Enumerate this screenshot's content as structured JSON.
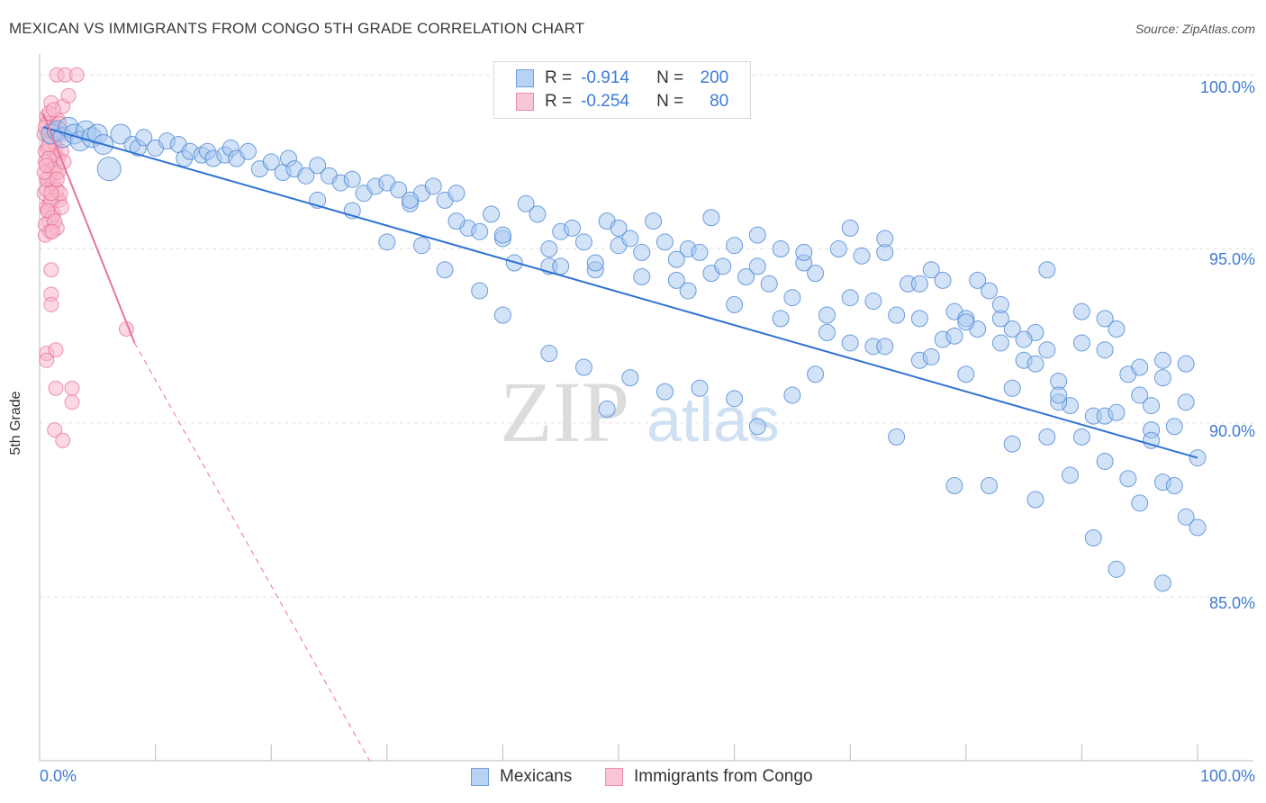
{
  "header": {
    "title": "MEXICAN VS IMMIGRANTS FROM CONGO 5TH GRADE CORRELATION CHART",
    "source": "Source: ZipAtlas.com"
  },
  "watermark": {
    "zip": "ZIP",
    "atlas": "atlas"
  },
  "legend": {
    "rows": [
      {
        "r_label": "R =",
        "r_value": "-0.914",
        "n_label": "N =",
        "n_value": "200"
      },
      {
        "r_label": "R =",
        "r_value": "-0.254",
        "n_label": "N =",
        "n_value": "80"
      }
    ]
  },
  "colors": {
    "blue_fill": "#a8c8f0",
    "blue_stroke": "#4a86d6",
    "blue_line": "#2f72d2",
    "pink_fill": "#f7b8cb",
    "pink_stroke": "#e8729a",
    "pink_line": "#e8739b",
    "tick_text": "#3d7bd4",
    "grid": "#e2e2e2"
  },
  "chart_data": {
    "type": "scatter",
    "title": "MEXICAN VS IMMIGRANTS FROM CONGO 5TH GRADE CORRELATION CHART",
    "xlabel": "",
    "ylabel": "5th Grade",
    "xlim": [
      0,
      100
    ],
    "ylim": [
      80.3,
      100.6
    ],
    "x_tick_labels": [
      "0.0%",
      "100.0%"
    ],
    "y_ticks": [
      85,
      90,
      95,
      100
    ],
    "y_tick_labels": [
      "85.0%",
      "90.0%",
      "95.0%",
      "100.0%"
    ],
    "grid": "horizontal dashed",
    "legend_placement": "bottom-center",
    "series": [
      {
        "name": "Mexicans",
        "R": -0.914,
        "N": 200,
        "trend": {
          "x": [
            0.3,
            100
          ],
          "y": [
            98.5,
            89.0
          ]
        },
        "points": [
          [
            1,
            98.3
          ],
          [
            1.5,
            98.4
          ],
          [
            2,
            98.2
          ],
          [
            2.5,
            98.5
          ],
          [
            3,
            98.3
          ],
          [
            3.5,
            98.1
          ],
          [
            4,
            98.4
          ],
          [
            4.5,
            98.2
          ],
          [
            5,
            98.3
          ],
          [
            5.5,
            98.0
          ],
          [
            6,
            97.3
          ],
          [
            7,
            98.3
          ],
          [
            8,
            98.0
          ],
          [
            8.5,
            97.9
          ],
          [
            9,
            98.2
          ],
          [
            10,
            97.9
          ],
          [
            11,
            98.1
          ],
          [
            12,
            98.0
          ],
          [
            12.5,
            97.6
          ],
          [
            13,
            97.8
          ],
          [
            14,
            97.7
          ],
          [
            14.5,
            97.8
          ],
          [
            15,
            97.6
          ],
          [
            16,
            97.7
          ],
          [
            16.5,
            97.9
          ],
          [
            17,
            97.6
          ],
          [
            18,
            97.8
          ],
          [
            19,
            97.3
          ],
          [
            20,
            97.5
          ],
          [
            21,
            97.2
          ],
          [
            21.5,
            97.6
          ],
          [
            22,
            97.3
          ],
          [
            23,
            97.1
          ],
          [
            24,
            97.4
          ],
          [
            25,
            97.1
          ],
          [
            26,
            96.9
          ],
          [
            27,
            97.0
          ],
          [
            28,
            96.6
          ],
          [
            29,
            96.8
          ],
          [
            30,
            96.9
          ],
          [
            31,
            96.7
          ],
          [
            32,
            96.3
          ],
          [
            33,
            96.6
          ],
          [
            34,
            96.8
          ],
          [
            35,
            96.4
          ],
          [
            36,
            96.6
          ],
          [
            37,
            95.6
          ],
          [
            38,
            95.5
          ],
          [
            39,
            96.0
          ],
          [
            40,
            95.3
          ],
          [
            41,
            94.6
          ],
          [
            42,
            96.3
          ],
          [
            43,
            96.0
          ],
          [
            44,
            94.5
          ],
          [
            45,
            95.5
          ],
          [
            46,
            95.6
          ],
          [
            47,
            95.2
          ],
          [
            48,
            94.4
          ],
          [
            49,
            95.8
          ],
          [
            50,
            95.1
          ],
          [
            51,
            95.3
          ],
          [
            52,
            94.9
          ],
          [
            53,
            95.8
          ],
          [
            54,
            95.2
          ],
          [
            55,
            94.1
          ],
          [
            56,
            95.0
          ],
          [
            57,
            94.9
          ],
          [
            58,
            94.3
          ],
          [
            59,
            94.5
          ],
          [
            60,
            95.1
          ],
          [
            61,
            94.2
          ],
          [
            62,
            95.4
          ],
          [
            63,
            94.0
          ],
          [
            64,
            95.0
          ],
          [
            65,
            93.6
          ],
          [
            66,
            94.6
          ],
          [
            67,
            94.3
          ],
          [
            68,
            93.1
          ],
          [
            69,
            95.0
          ],
          [
            70,
            93.6
          ],
          [
            71,
            94.8
          ],
          [
            72,
            93.5
          ],
          [
            73,
            94.9
          ],
          [
            74,
            93.1
          ],
          [
            75,
            94.0
          ],
          [
            76,
            93.0
          ],
          [
            77,
            94.4
          ],
          [
            78,
            92.4
          ],
          [
            79,
            93.2
          ],
          [
            80,
            93.0
          ],
          [
            81,
            92.7
          ],
          [
            82,
            93.8
          ],
          [
            83,
            92.3
          ],
          [
            84,
            92.7
          ],
          [
            85,
            91.8
          ],
          [
            86,
            92.6
          ],
          [
            87,
            92.1
          ],
          [
            88,
            91.2
          ],
          [
            89,
            90.5
          ],
          [
            90,
            92.3
          ],
          [
            91,
            90.2
          ],
          [
            92,
            93.0
          ],
          [
            93,
            92.7
          ],
          [
            94,
            91.4
          ],
          [
            95,
            90.8
          ],
          [
            96,
            90.5
          ],
          [
            97,
            91.3
          ],
          [
            98,
            89.9
          ],
          [
            99,
            90.6
          ],
          [
            100,
            89.0
          ],
          [
            32,
            96.4
          ],
          [
            36,
            95.8
          ],
          [
            40,
            95.4
          ],
          [
            44,
            95.0
          ],
          [
            48,
            94.6
          ],
          [
            52,
            94.2
          ],
          [
            56,
            93.8
          ],
          [
            60,
            93.4
          ],
          [
            64,
            93.0
          ],
          [
            68,
            92.6
          ],
          [
            72,
            92.2
          ],
          [
            76,
            91.8
          ],
          [
            80,
            91.4
          ],
          [
            84,
            91.0
          ],
          [
            88,
            90.6
          ],
          [
            92,
            90.2
          ],
          [
            96,
            89.8
          ],
          [
            45,
            94.5
          ],
          [
            50,
            95.6
          ],
          [
            55,
            94.7
          ],
          [
            58,
            95.9
          ],
          [
            62,
            94.5
          ],
          [
            66,
            94.9
          ],
          [
            70,
            95.6
          ],
          [
            73,
            95.3
          ],
          [
            76,
            94.0
          ],
          [
            79,
            92.5
          ],
          [
            81,
            94.1
          ],
          [
            83,
            93.0
          ],
          [
            86,
            91.7
          ],
          [
            88,
            90.8
          ],
          [
            90,
            89.6
          ],
          [
            92,
            88.9
          ],
          [
            94,
            88.4
          ],
          [
            95,
            87.7
          ],
          [
            97,
            88.3
          ],
          [
            98,
            88.2
          ],
          [
            99,
            87.3
          ],
          [
            100,
            87.0
          ],
          [
            91,
            86.7
          ],
          [
            93,
            85.8
          ],
          [
            97,
            85.4
          ],
          [
            86,
            87.8
          ],
          [
            89,
            88.5
          ],
          [
            87,
            89.6
          ],
          [
            93,
            90.3
          ],
          [
            95,
            91.6
          ],
          [
            97,
            91.8
          ],
          [
            99,
            91.7
          ],
          [
            96,
            89.5
          ],
          [
            84,
            89.4
          ],
          [
            82,
            88.2
          ],
          [
            79,
            88.2
          ],
          [
            74,
            89.6
          ],
          [
            77,
            91.9
          ],
          [
            80,
            92.9
          ],
          [
            85,
            92.4
          ],
          [
            87,
            94.4
          ],
          [
            90,
            93.2
          ],
          [
            92,
            92.1
          ],
          [
            83,
            93.4
          ],
          [
            78,
            94.1
          ],
          [
            73,
            92.2
          ],
          [
            70,
            92.3
          ],
          [
            67,
            91.4
          ],
          [
            65,
            90.8
          ],
          [
            62,
            89.9
          ],
          [
            60,
            90.7
          ],
          [
            57,
            91.0
          ],
          [
            54,
            90.9
          ],
          [
            51,
            91.3
          ],
          [
            49,
            90.4
          ],
          [
            47,
            91.6
          ],
          [
            44,
            92.0
          ],
          [
            40,
            93.1
          ],
          [
            38,
            93.8
          ],
          [
            35,
            94.4
          ],
          [
            33,
            95.1
          ],
          [
            30,
            95.2
          ],
          [
            27,
            96.1
          ],
          [
            24,
            96.4
          ]
        ]
      },
      {
        "name": "Immigrants from Congo",
        "R": -0.254,
        "N": 80,
        "trend_solid": {
          "x": [
            0.3,
            8.2
          ],
          "y": [
            98.9,
            92.3
          ]
        },
        "trend_dashed": {
          "x": [
            8.2,
            28.5
          ],
          "y": [
            92.3,
            80.3
          ]
        },
        "points": [
          [
            1.5,
            100.0
          ],
          [
            2.2,
            100.0
          ],
          [
            3.2,
            100.0
          ],
          [
            1.0,
            99.2
          ],
          [
            2.0,
            99.1
          ],
          [
            2.5,
            99.4
          ],
          [
            0.6,
            98.8
          ],
          [
            1.2,
            98.6
          ],
          [
            1.8,
            98.4
          ],
          [
            0.8,
            98.2
          ],
          [
            1.3,
            98.0
          ],
          [
            0.5,
            97.8
          ],
          [
            1.6,
            97.6
          ],
          [
            0.9,
            97.4
          ],
          [
            1.4,
            97.2
          ],
          [
            0.7,
            97.0
          ],
          [
            1.1,
            96.8
          ],
          [
            0.4,
            96.6
          ],
          [
            1.7,
            96.4
          ],
          [
            0.6,
            96.2
          ],
          [
            1.2,
            96.0
          ],
          [
            0.8,
            95.8
          ],
          [
            1.5,
            95.6
          ],
          [
            0.5,
            95.4
          ],
          [
            0.6,
            98.6
          ],
          [
            0.9,
            98.4
          ],
          [
            0.4,
            98.3
          ],
          [
            1.0,
            98.1
          ],
          [
            0.7,
            97.9
          ],
          [
            1.3,
            97.7
          ],
          [
            0.5,
            97.5
          ],
          [
            1.0,
            97.3
          ],
          [
            0.8,
            97.1
          ],
          [
            1.2,
            96.9
          ],
          [
            0.6,
            96.7
          ],
          [
            1.4,
            96.5
          ],
          [
            0.9,
            96.3
          ],
          [
            0.7,
            96.1
          ],
          [
            1.1,
            95.9
          ],
          [
            0.5,
            95.7
          ],
          [
            1.6,
            98.7
          ],
          [
            0.5,
            98.5
          ],
          [
            1.0,
            98.2
          ],
          [
            1.4,
            97.9
          ],
          [
            0.8,
            97.6
          ],
          [
            1.2,
            97.3
          ],
          [
            0.6,
            97.0
          ],
          [
            1.5,
            96.7
          ],
          [
            1.0,
            96.4
          ],
          [
            0.7,
            96.1
          ],
          [
            1.3,
            95.8
          ],
          [
            1.9,
            97.8
          ],
          [
            2.0,
            98.3
          ],
          [
            1.6,
            97.2
          ],
          [
            1.8,
            96.6
          ],
          [
            0.9,
            95.5
          ],
          [
            1.0,
            94.4
          ],
          [
            1.0,
            93.7
          ],
          [
            1.0,
            93.4
          ],
          [
            0.6,
            92.0
          ],
          [
            1.4,
            92.1
          ],
          [
            0.6,
            91.8
          ],
          [
            1.4,
            91.0
          ],
          [
            2.8,
            91.0
          ],
          [
            2.8,
            90.6
          ],
          [
            1.3,
            89.8
          ],
          [
            2.0,
            89.5
          ],
          [
            7.5,
            92.7
          ],
          [
            0.8,
            98.9
          ],
          [
            1.2,
            99.0
          ],
          [
            1.7,
            98.6
          ],
          [
            0.4,
            97.2
          ],
          [
            2.1,
            97.5
          ],
          [
            1.9,
            96.2
          ],
          [
            1.1,
            95.5
          ],
          [
            0.8,
            98.0
          ],
          [
            1.3,
            98.4
          ],
          [
            0.6,
            97.4
          ],
          [
            1.5,
            97.0
          ],
          [
            1.0,
            96.6
          ]
        ]
      }
    ]
  },
  "bottom_legend": {
    "items": [
      {
        "label": "Mexicans"
      },
      {
        "label": "Immigrants from Congo"
      }
    ]
  },
  "axis": {
    "x_left": "0.0%",
    "x_right": "100.0%"
  }
}
